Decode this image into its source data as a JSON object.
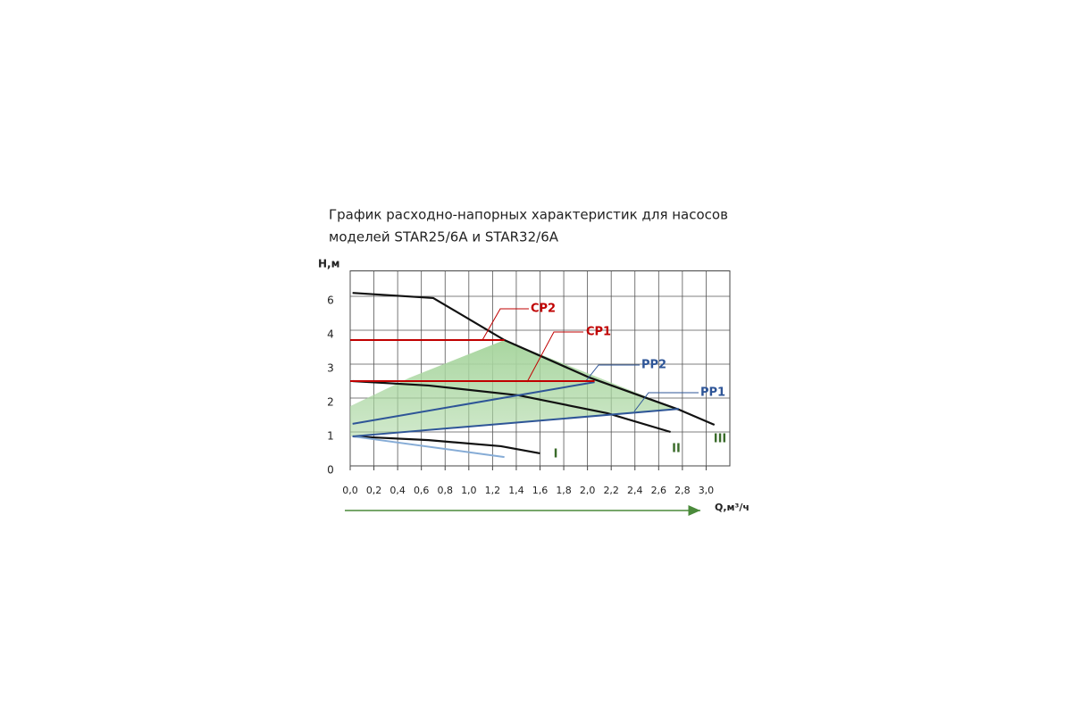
{
  "chart_data": {
    "type": "line",
    "title": [
      "График  расходно-напорных  характеристик  для  насосов",
      "моделей STAR25/6A и STAR32/6A"
    ],
    "ylabel": "H,м",
    "xlabel": "Q,м³/ч",
    "xlim": [
      0,
      3.2
    ],
    "ylim": [
      0,
      7.5
    ],
    "xticks": [
      {
        "value": 0,
        "label": "0,0"
      },
      {
        "value": 0.2,
        "label": "0,2"
      },
      {
        "value": 0.4,
        "label": "0,4"
      },
      {
        "value": 0.6,
        "label": "0,6"
      },
      {
        "value": 0.8,
        "label": "0,8"
      },
      {
        "value": 1.0,
        "label": "1,0"
      },
      {
        "value": 1.2,
        "label": "1,2"
      },
      {
        "value": 1.4,
        "label": "1,4"
      },
      {
        "value": 1.6,
        "label": "1,6"
      },
      {
        "value": 1.8,
        "label": "1,8"
      },
      {
        "value": 2.0,
        "label": "2,0"
      },
      {
        "value": 2.2,
        "label": "2,2"
      },
      {
        "value": 2.4,
        "label": "2,4"
      },
      {
        "value": 2.6,
        "label": "2,6"
      },
      {
        "value": 2.8,
        "label": "2,8"
      },
      {
        "value": 3.0,
        "label": "3,0"
      }
    ],
    "yticks": [
      0,
      1,
      2,
      3,
      4,
      6
    ],
    "grid": true,
    "region": {
      "color": "#a9d6a0",
      "x": [
        0,
        0.5,
        1.3,
        2.77,
        0
      ],
      "values": [
        1.76,
        2.6,
        3.71,
        1.66,
        0.87
      ]
    },
    "series": [
      {
        "name": "III",
        "color": "#111111",
        "x": [
          0.02,
          0.7,
          1.3,
          2.02,
          2.77,
          3.07
        ],
        "values": [
          6.2,
          5.9,
          3.71,
          2.6,
          1.66,
          1.21
        ]
      },
      {
        "name": "II",
        "color": "#111111",
        "x": [
          0.02,
          0.66,
          1.42,
          2.17,
          2.7
        ],
        "values": [
          2.5,
          2.37,
          2.08,
          1.55,
          1.0
        ]
      },
      {
        "name": "I",
        "color": "#111111",
        "x": [
          0.02,
          0.66,
          1.27,
          1.6
        ],
        "values": [
          0.87,
          0.76,
          0.58,
          0.37
        ]
      },
      {
        "color": "#86acd6",
        "x": [
          0.02,
          1.3
        ],
        "values": [
          0.87,
          0.26
        ]
      },
      {
        "name": "PP2",
        "color": "#2e5597",
        "x": [
          0.02,
          2.06
        ],
        "values": [
          1.24,
          2.47
        ]
      },
      {
        "name": "PP1",
        "color": "#2e5597",
        "x": [
          0.02,
          2.77
        ],
        "values": [
          0.87,
          1.68
        ]
      },
      {
        "name": "CP2",
        "color": "#c00000",
        "x": [
          0,
          1.3
        ],
        "values": [
          3.71,
          3.71
        ]
      },
      {
        "name": "CP1",
        "color": "#c00000",
        "x": [
          0,
          2.06
        ],
        "values": [
          2.5,
          2.5
        ]
      }
    ]
  }
}
